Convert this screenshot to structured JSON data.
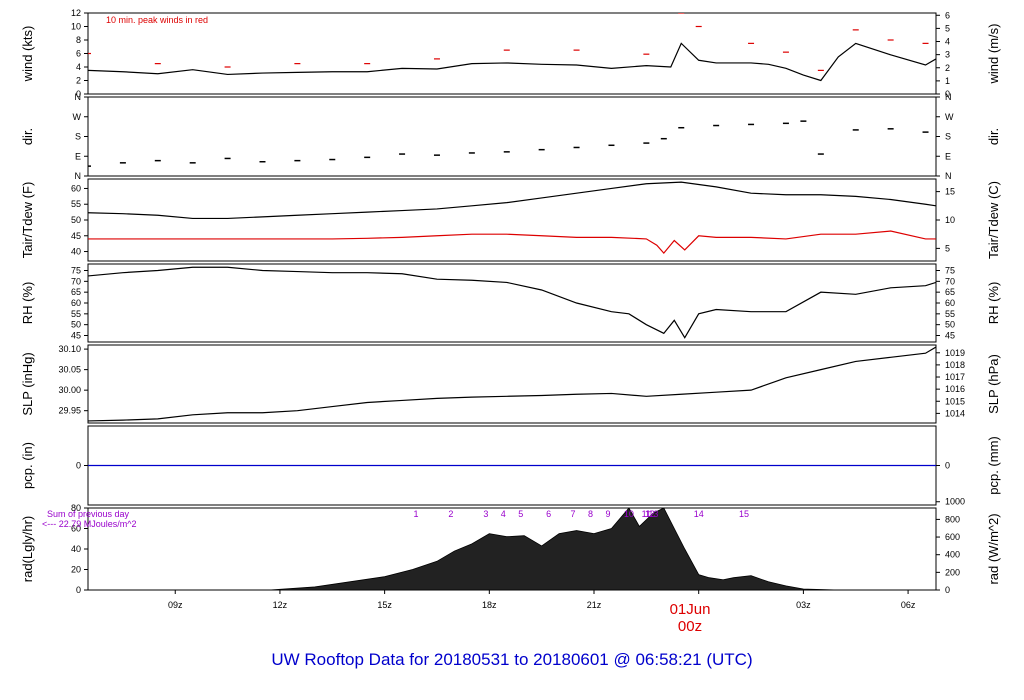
{
  "figure": {
    "title": "UW Rooftop Data for 20180531  to  20180601 @ 06:58:21  (UTC)",
    "title_color": "#0000cc",
    "date_label": "01Jun",
    "date_sublabel": "00z",
    "date_color": "#dd0000"
  },
  "chart_data": [
    {
      "id": "wind",
      "type": "line",
      "ylabel": "wind (kts)",
      "ylabel_right": "wind (m/s)",
      "ylim": [
        0,
        12
      ],
      "yticks": [
        0,
        2,
        4,
        6,
        8,
        10,
        12
      ],
      "right_ticks": [
        "0",
        "1",
        "2",
        "3",
        "4",
        "5",
        "6"
      ],
      "annotation": "10 min. peak winds in red",
      "annotation_color": "#dd0000",
      "series": [
        {
          "name": "wind speed",
          "color": "#000000",
          "x": [
            6.5,
            7.5,
            8.5,
            9.5,
            10.5,
            11.5,
            12.5,
            13.5,
            14.5,
            15.5,
            16.5,
            17.5,
            18.5,
            19.5,
            20.5,
            21.5,
            22.5,
            23.2,
            23.5,
            24.0,
            24.5,
            25.5,
            26.0,
            26.5,
            27.0,
            27.5,
            28.0,
            28.5,
            29.5,
            30.5,
            30.8
          ],
          "y": [
            3.5,
            3.3,
            3.0,
            3.6,
            2.9,
            3.1,
            3.2,
            3.3,
            3.3,
            3.8,
            3.7,
            4.5,
            4.6,
            4.4,
            4.3,
            3.8,
            4.2,
            4.0,
            7.5,
            5.0,
            4.6,
            4.6,
            4.4,
            3.8,
            2.8,
            2.0,
            5.5,
            7.5,
            5.8,
            4.3,
            5.2
          ]
        },
        {
          "name": "10 min peak",
          "color": "#dd0000",
          "x": [
            6.5,
            8.5,
            10.5,
            12.5,
            14.5,
            16.5,
            18.5,
            20.5,
            22.5,
            23.5,
            24.0,
            25.5,
            26.5,
            27.5,
            28.5,
            29.5,
            30.5
          ],
          "y": [
            6.0,
            4.5,
            4.0,
            4.5,
            4.5,
            5.2,
            6.5,
            6.5,
            5.9,
            12.0,
            10.0,
            7.5,
            6.2,
            3.5,
            9.5,
            8.0,
            7.5
          ]
        }
      ]
    },
    {
      "id": "dir",
      "type": "scatter",
      "ylabel": "dir.",
      "ylabel_right": "dir.",
      "ylim": [
        0,
        360
      ],
      "yticks": [
        0,
        90,
        180,
        270,
        360
      ],
      "tick_labels": [
        "N",
        "E",
        "S",
        "W",
        "N"
      ],
      "series": [
        {
          "name": "wind direction",
          "color": "#000000",
          "x": [
            6.5,
            7.5,
            8.5,
            9.5,
            10.5,
            11.5,
            12.5,
            13.5,
            14.5,
            15.5,
            16.5,
            17.5,
            18.5,
            19.5,
            20.5,
            21.5,
            22.5,
            23.0,
            23.5,
            24.5,
            25.5,
            26.5,
            27.0,
            27.5,
            28.5,
            29.5,
            30.5
          ],
          "y": [
            45,
            60,
            70,
            60,
            80,
            65,
            70,
            75,
            85,
            100,
            95,
            105,
            110,
            120,
            130,
            140,
            150,
            170,
            220,
            230,
            235,
            240,
            250,
            100,
            210,
            215,
            200
          ]
        }
      ]
    },
    {
      "id": "temp",
      "type": "line",
      "ylabel": "Tair/Tdew (F)",
      "ylabel_right": "Tair/Tdew (C)",
      "ylim": [
        37,
        63
      ],
      "yticks": [
        40,
        45,
        50,
        55,
        60
      ],
      "right_tick_values_c": [
        5,
        10,
        15
      ],
      "series": [
        {
          "name": "Tair",
          "color": "#000000",
          "x": [
            6.5,
            7.5,
            8.5,
            9.5,
            10.5,
            11.5,
            12.5,
            13.5,
            14.5,
            15.5,
            16.5,
            17.5,
            18.5,
            19.5,
            20.5,
            21.5,
            22.5,
            23.5,
            24.5,
            25.5,
            26.5,
            27.5,
            28.5,
            29.5,
            30.5,
            30.8
          ],
          "y": [
            52.3,
            52.0,
            51.5,
            50.5,
            50.5,
            51.0,
            51.5,
            52.0,
            52.5,
            53.0,
            53.5,
            54.5,
            55.5,
            57.0,
            58.5,
            60.0,
            61.5,
            62.0,
            60.5,
            58.5,
            58.0,
            58.0,
            57.5,
            56.5,
            55.0,
            54.5
          ]
        },
        {
          "name": "Tdew",
          "color": "#dd0000",
          "x": [
            6.5,
            7.5,
            8.5,
            9.5,
            10.5,
            11.5,
            12.5,
            13.5,
            14.5,
            15.5,
            16.5,
            17.5,
            18.5,
            19.5,
            20.5,
            21.5,
            22.5,
            22.8,
            23.0,
            23.3,
            23.6,
            24.0,
            24.5,
            25.5,
            26.5,
            27.5,
            28.5,
            29.5,
            30.5,
            30.8
          ],
          "y": [
            44.0,
            44.0,
            44.0,
            44.0,
            44.0,
            44.0,
            44.0,
            44.0,
            44.2,
            44.5,
            45.0,
            45.5,
            45.5,
            45.0,
            44.5,
            44.5,
            44.0,
            42.0,
            39.5,
            43.5,
            40.5,
            45.0,
            44.5,
            44.5,
            44.0,
            45.5,
            45.5,
            46.5,
            44.0,
            44.0
          ]
        }
      ]
    },
    {
      "id": "rh",
      "type": "line",
      "ylabel": "RH (%)",
      "ylabel_right": "RH (%)",
      "ylim": [
        42,
        78
      ],
      "yticks": [
        45,
        50,
        55,
        60,
        65,
        70,
        75
      ],
      "series": [
        {
          "name": "RH",
          "color": "#000000",
          "x": [
            6.5,
            7.5,
            8.5,
            9.5,
            10.5,
            11.5,
            12.5,
            13.5,
            14.5,
            15.5,
            16.5,
            17.5,
            18.5,
            19.5,
            20.5,
            21.5,
            22.0,
            22.5,
            23.0,
            23.3,
            23.6,
            24.0,
            24.5,
            25.5,
            26.5,
            27.5,
            28.5,
            29.5,
            30.5,
            30.8
          ],
          "y": [
            72.5,
            74.0,
            75.0,
            76.5,
            76.5,
            75.0,
            74.5,
            74.0,
            74.0,
            73.5,
            71.0,
            70.5,
            69.5,
            66.0,
            60.0,
            56.0,
            55.0,
            50.0,
            46.0,
            52.0,
            44.0,
            55.0,
            57.0,
            56.0,
            56.0,
            65.0,
            64.0,
            67.0,
            68.0,
            69.5
          ]
        }
      ]
    },
    {
      "id": "slp",
      "type": "line",
      "ylabel": "SLP (inHg)",
      "ylabel_right": "SLP (hPa)",
      "ylim": [
        29.92,
        30.11
      ],
      "yticks": [
        29.95,
        30.0,
        30.05,
        30.1
      ],
      "tick_labels": [
        "29.95",
        "30.00",
        "30.05",
        "30.10"
      ],
      "right_tick_values_hpa": [
        1014,
        1015,
        1016,
        1017,
        1018,
        1019
      ],
      "series": [
        {
          "name": "SLP",
          "color": "#000000",
          "x": [
            6.5,
            7.5,
            8.5,
            9.5,
            10.5,
            11.5,
            12.5,
            13.5,
            14.5,
            15.5,
            16.5,
            17.5,
            18.5,
            19.5,
            20.5,
            21.5,
            22.5,
            23.5,
            24.5,
            25.5,
            26.5,
            27.5,
            28.5,
            29.5,
            30.5,
            30.8
          ],
          "y": [
            29.925,
            29.927,
            29.93,
            29.94,
            29.945,
            29.945,
            29.95,
            29.96,
            29.97,
            29.975,
            29.98,
            29.983,
            29.985,
            29.987,
            29.99,
            29.992,
            29.985,
            29.99,
            29.995,
            30.0,
            30.03,
            30.05,
            30.07,
            30.08,
            30.09,
            30.105
          ]
        }
      ]
    },
    {
      "id": "pcp",
      "type": "line",
      "ylabel": "pcp. (in)",
      "ylabel_right": "pcp. (mm)",
      "ylim": [
        -1,
        1
      ],
      "yticks": [
        0
      ],
      "right_ticks": [
        "0"
      ],
      "series": [
        {
          "name": "pcp",
          "color": "#0000cc",
          "x": [
            6.5,
            30.8
          ],
          "y": [
            0,
            0
          ]
        }
      ]
    },
    {
      "id": "rad",
      "type": "area",
      "ylabel": "rad(Lgly/hr)",
      "ylabel_right": "rad (W/m^2)",
      "ylim": [
        0,
        80
      ],
      "yticks": [
        0,
        20,
        40,
        60,
        80
      ],
      "right_tick_values_wm2": [
        0,
        200,
        400,
        600,
        800,
        1000
      ],
      "annotation": "Sum of previous day",
      "annotation2": "<--- 22.79 MJoules/m^2",
      "annotation_color": "#9900cc",
      "hour_marks": [
        "1",
        "2",
        "3",
        "4",
        "5",
        "6",
        "7",
        "8",
        "9",
        "10",
        "11",
        "12",
        "13",
        "14",
        "15"
      ],
      "hour_mark_x": [
        15.9,
        16.9,
        17.9,
        18.4,
        18.9,
        19.7,
        20.4,
        20.9,
        21.4,
        22.0,
        22.5,
        22.6,
        22.7,
        24.0,
        25.3
      ],
      "series": [
        {
          "name": "radiation",
          "color": "#000000",
          "x": [
            8.0,
            11.7,
            13.0,
            14.0,
            15.0,
            15.8,
            16.5,
            17.0,
            17.5,
            18.0,
            18.5,
            19.0,
            19.5,
            20.0,
            20.5,
            21.0,
            21.5,
            22.0,
            22.3,
            22.7,
            23.0,
            23.3,
            23.6,
            24.0,
            24.3,
            24.7,
            25.0,
            25.5,
            26.0,
            26.5,
            27.0,
            28.0
          ],
          "y": [
            0,
            0,
            3,
            8,
            13,
            20,
            28,
            38,
            45,
            55,
            52,
            53,
            43,
            55,
            58,
            55,
            60,
            80,
            62,
            75,
            80,
            60,
            40,
            15,
            12,
            10,
            12,
            14,
            8,
            4,
            1,
            0
          ]
        }
      ]
    }
  ],
  "x_axis": {
    "range": [
      6.5,
      30.8
    ],
    "ticks": [
      9,
      12,
      15,
      18,
      21,
      24,
      27,
      30
    ],
    "tick_labels": [
      "09z",
      "12z",
      "15z",
      "18z",
      "21z",
      "",
      "03z",
      "06z"
    ]
  }
}
